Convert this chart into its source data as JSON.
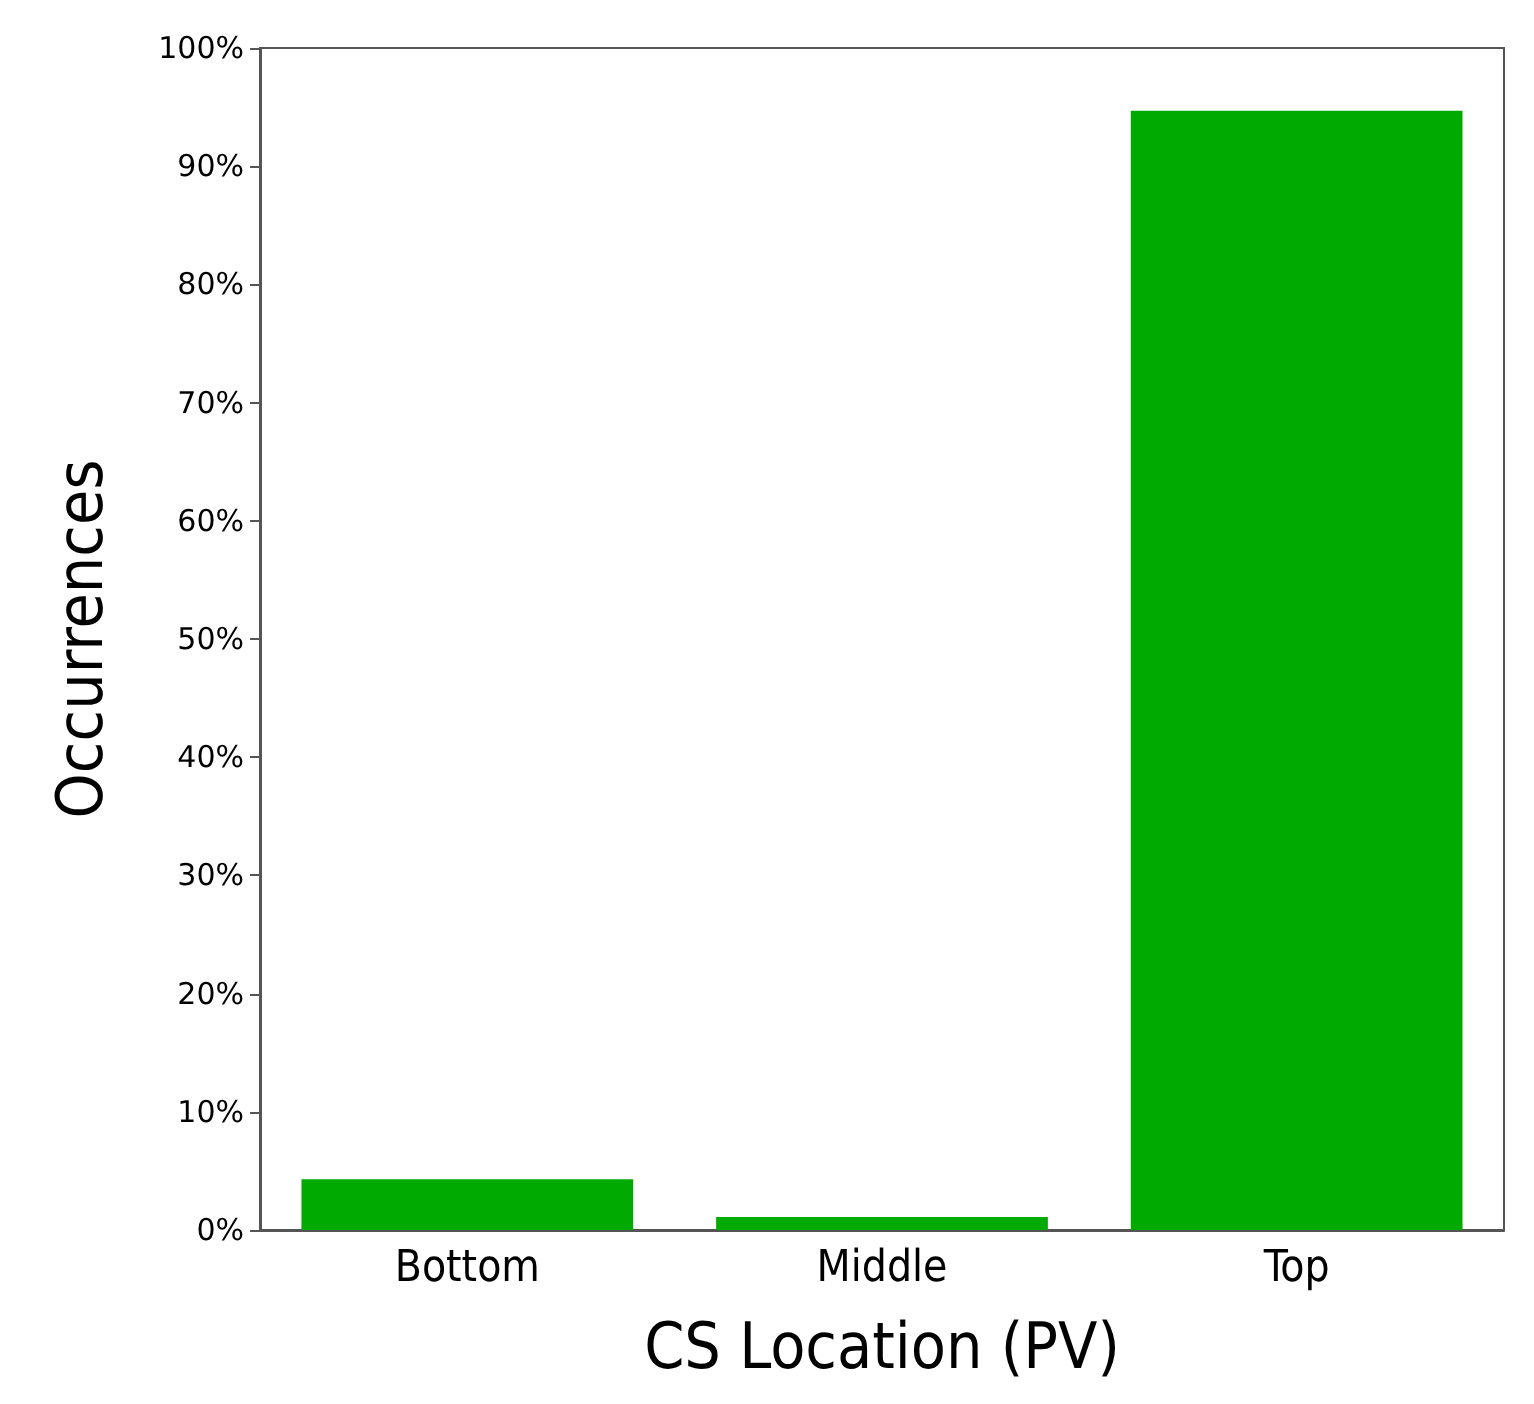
{
  "chart_data": {
    "type": "bar",
    "xlabel": "CS Location (PV)",
    "ylabel": "Occurrences",
    "categories": [
      "Bottom",
      "Middle",
      "Top"
    ],
    "values": [
      4.3,
      1.1,
      94.7
    ],
    "color": "#00aa00",
    "ylim": [
      0,
      100
    ],
    "yticks": [
      {
        "value": 0,
        "label": "0%"
      },
      {
        "value": 10,
        "label": "10%"
      },
      {
        "value": 20,
        "label": "20%"
      },
      {
        "value": 30,
        "label": "30%"
      },
      {
        "value": 40,
        "label": "40%"
      },
      {
        "value": 50,
        "label": "50%"
      },
      {
        "value": 60,
        "label": "60%"
      },
      {
        "value": 70,
        "label": "70%"
      },
      {
        "value": 80,
        "label": "80%"
      },
      {
        "value": 90,
        "label": "90%"
      },
      {
        "value": 100,
        "label": "100%"
      }
    ],
    "grid": false
  }
}
